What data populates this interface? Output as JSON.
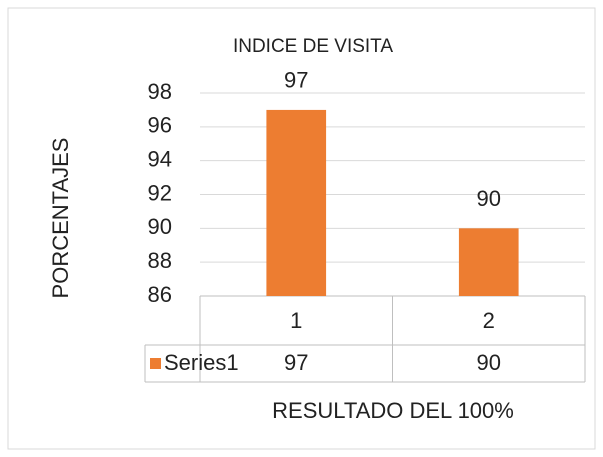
{
  "chart_data": {
    "type": "bar",
    "title": "INDICE DE VISITA",
    "y_label": "PORCENTAJES",
    "x_label": "RESULTADO DEL 100%",
    "categories": [
      "1",
      "2"
    ],
    "series": [
      {
        "name": "Series1",
        "color": "#ed7d31",
        "values": [
          97,
          90
        ]
      }
    ],
    "ylim": [
      86,
      98
    ],
    "yticks": [
      86,
      88,
      90,
      92,
      94,
      96,
      98
    ],
    "grid": true
  }
}
